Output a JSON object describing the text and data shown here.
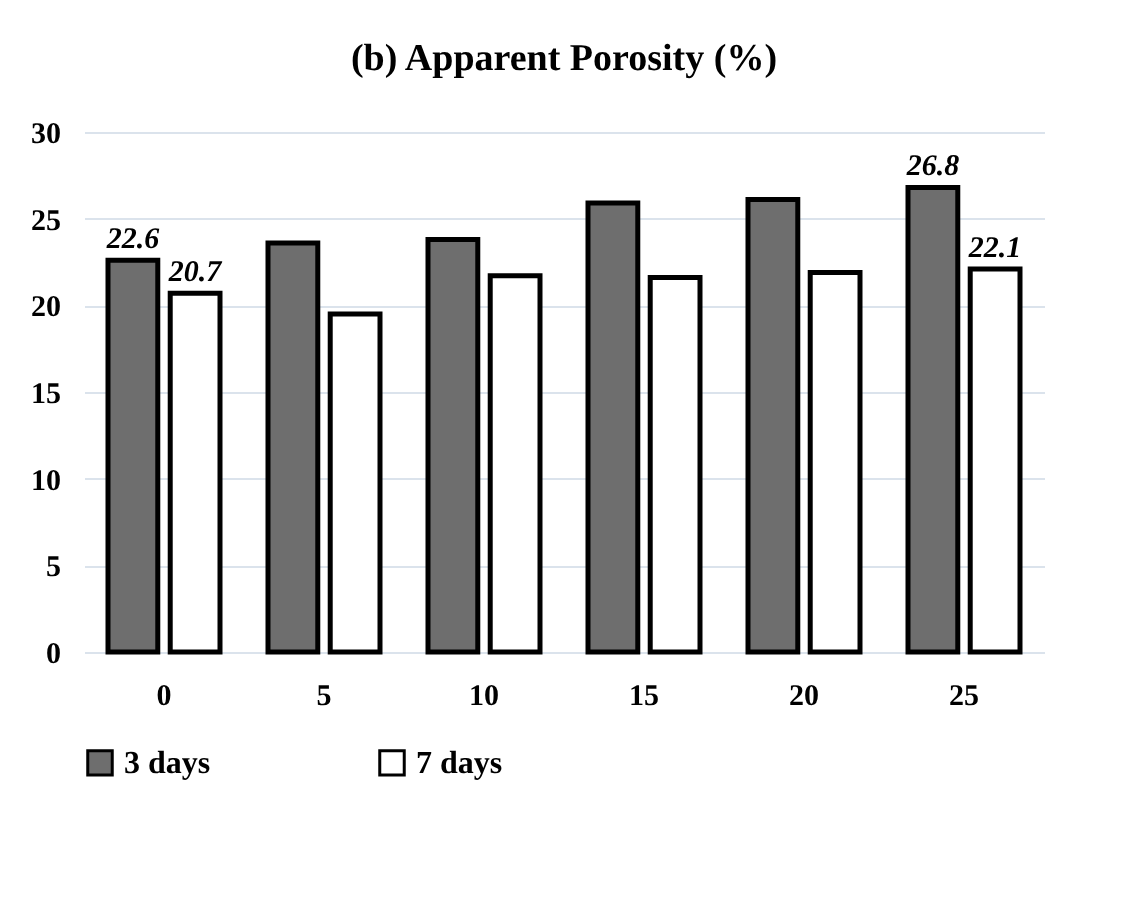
{
  "chart_data": {
    "type": "bar",
    "title": "(b) Apparent Porosity (%)",
    "categories": [
      "0",
      "5",
      "10",
      "15",
      "20",
      "25"
    ],
    "series": [
      {
        "name": "3 days",
        "color": "#6e6e6e",
        "values": [
          22.6,
          23.6,
          23.8,
          25.9,
          26.1,
          26.8
        ],
        "value_labels": [
          "22.6",
          null,
          null,
          null,
          null,
          "26.8"
        ]
      },
      {
        "name": "7 days",
        "color": "#ffffff",
        "values": [
          20.7,
          19.5,
          21.7,
          21.6,
          21.9,
          22.1
        ],
        "value_labels": [
          "20.7",
          null,
          null,
          null,
          null,
          "22.1"
        ]
      }
    ],
    "ylim": [
      0,
      30
    ],
    "yticks": [
      0,
      5,
      10,
      15,
      20,
      25,
      30
    ],
    "grid": "y",
    "legend": "bottom"
  }
}
